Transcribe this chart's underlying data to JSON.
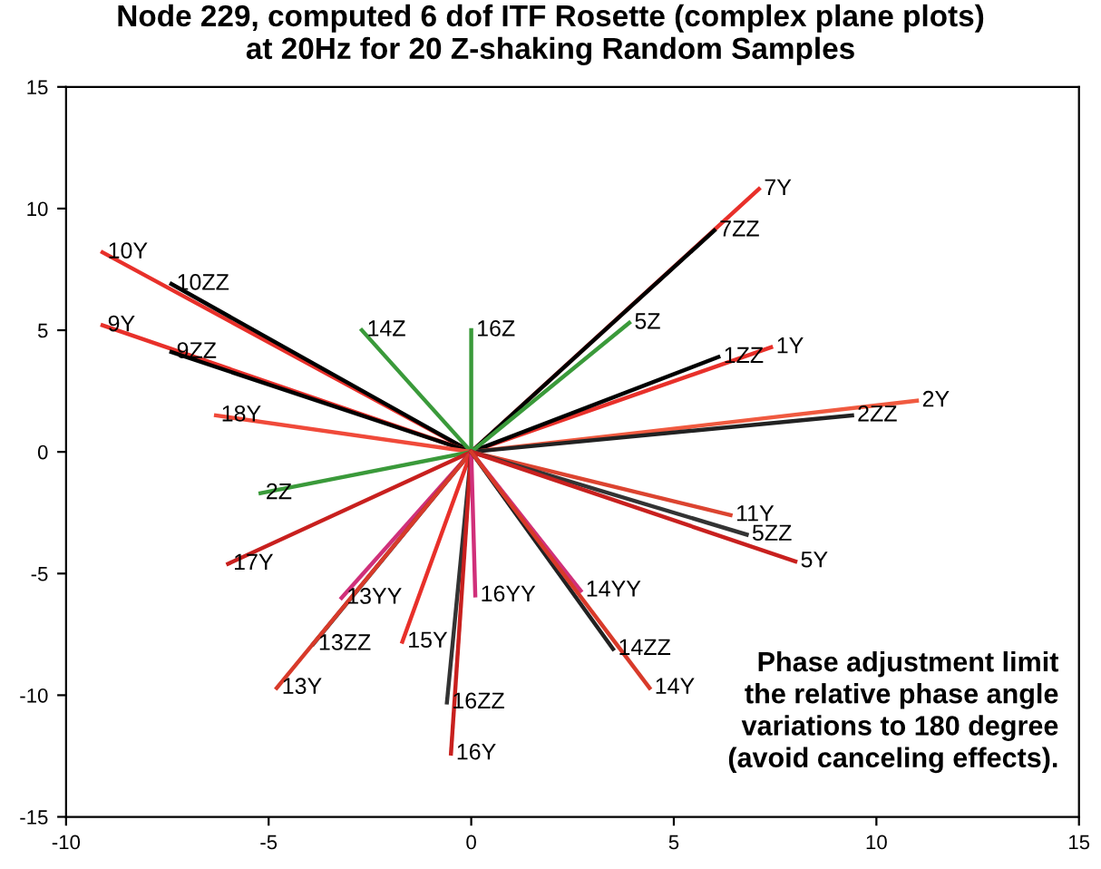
{
  "chart_data": {
    "type": "line",
    "title": "Node 229, computed 6 dof ITF Rosette (complex plane plots)\nat 20Hz for 20 Z-shaking Random Samples",
    "xlim": [
      -10,
      15
    ],
    "ylim": [
      -15,
      15
    ],
    "xticks": [
      -10,
      -5,
      0,
      5,
      10,
      15
    ],
    "yticks": [
      -15,
      -10,
      -5,
      0,
      5,
      10,
      15
    ],
    "grid": false,
    "legend": false,
    "marker": "none",
    "line_style": "solid",
    "annotations": [
      "Phase adjustment limit\nthe relative phase angle\nvariations to 180 degree\n(avoid canceling effects)."
    ],
    "series": [
      {
        "name": "7Y",
        "color": "#e8302a",
        "x": [
          0,
          7.1
        ],
        "values": [
          0,
          10.8
        ]
      },
      {
        "name": "7ZZ",
        "color": "#000000",
        "x": [
          0,
          6.0
        ],
        "values": [
          0,
          9.1
        ]
      },
      {
        "name": "1Y",
        "color": "#e8302a",
        "x": [
          0,
          7.4
        ],
        "values": [
          0,
          4.3
        ]
      },
      {
        "name": "1ZZ",
        "color": "#000000",
        "x": [
          0,
          6.1
        ],
        "values": [
          0,
          3.9
        ]
      },
      {
        "name": "2Y",
        "color": "#f05a40",
        "x": [
          0,
          11.0
        ],
        "values": [
          0,
          2.1
        ]
      },
      {
        "name": "2ZZ",
        "color": "#222222",
        "x": [
          0,
          9.4
        ],
        "values": [
          0,
          1.5
        ]
      },
      {
        "name": "10Y",
        "color": "#e8302a",
        "x": [
          0,
          -9.1
        ],
        "values": [
          0,
          8.2
        ]
      },
      {
        "name": "10ZZ",
        "color": "#000000",
        "x": [
          0,
          -7.4
        ],
        "values": [
          0,
          6.9
        ]
      },
      {
        "name": "9Y",
        "color": "#e8302a",
        "x": [
          0,
          -9.1
        ],
        "values": [
          0,
          5.2
        ]
      },
      {
        "name": "9ZZ",
        "color": "#000000",
        "x": [
          0,
          -7.4
        ],
        "values": [
          0,
          4.1
        ]
      },
      {
        "name": "14Z",
        "color": "#3a9a3a",
        "x": [
          0,
          -2.7
        ],
        "values": [
          0,
          5.0
        ]
      },
      {
        "name": "16Z",
        "color": "#3a9a3a",
        "x": [
          0,
          0.0
        ],
        "values": [
          0,
          5.0
        ]
      },
      {
        "name": "5Z",
        "color": "#3a9a3a",
        "x": [
          0,
          3.9
        ],
        "values": [
          0,
          5.3
        ]
      },
      {
        "name": "18Y",
        "color": "#f04a3a",
        "x": [
          0,
          -6.3
        ],
        "values": [
          0,
          1.5
        ]
      },
      {
        "name": "2Z",
        "color": "#3a9a3a",
        "x": [
          0,
          -5.2
        ],
        "values": [
          0,
          -1.7
        ]
      },
      {
        "name": "17Y",
        "color": "#c8201e",
        "x": [
          0,
          -6.0
        ],
        "values": [
          0,
          -4.6
        ]
      },
      {
        "name": "13YY",
        "color": "#d0307a",
        "x": [
          0,
          -3.2
        ],
        "values": [
          0,
          -6.0
        ]
      },
      {
        "name": "13ZZ",
        "color": "#333333",
        "x": [
          0,
          -3.9
        ],
        "values": [
          0,
          -7.9
        ]
      },
      {
        "name": "13Y",
        "color": "#d83a2a",
        "x": [
          0,
          -4.8
        ],
        "values": [
          0,
          -9.7
        ]
      },
      {
        "name": "15Y",
        "color": "#e8302a",
        "x": [
          0,
          -1.7
        ],
        "values": [
          0,
          -7.8
        ]
      },
      {
        "name": "16ZZ",
        "color": "#333333",
        "x": [
          0,
          -0.6
        ],
        "values": [
          0,
          -10.3
        ]
      },
      {
        "name": "16Y",
        "color": "#c8201e",
        "x": [
          0,
          -0.5
        ],
        "values": [
          0,
          -12.4
        ]
      },
      {
        "name": "16YY",
        "color": "#d0307a",
        "x": [
          0,
          0.1
        ],
        "values": [
          0,
          -5.9
        ]
      },
      {
        "name": "11Y",
        "color": "#dc4430",
        "x": [
          0,
          6.4
        ],
        "values": [
          0,
          -2.6
        ]
      },
      {
        "name": "5ZZ",
        "color": "#333333",
        "x": [
          0,
          6.8
        ],
        "values": [
          0,
          -3.4
        ]
      },
      {
        "name": "5Y",
        "color": "#c8201e",
        "x": [
          0,
          8.0
        ],
        "values": [
          0,
          -4.5
        ]
      },
      {
        "name": "14YY",
        "color": "#d0307a",
        "x": [
          0,
          2.7
        ],
        "values": [
          0,
          -5.7
        ]
      },
      {
        "name": "14ZZ",
        "color": "#222222",
        "x": [
          0,
          3.5
        ],
        "values": [
          0,
          -8.1
        ]
      },
      {
        "name": "14Y",
        "color": "#d83a2a",
        "x": [
          0,
          4.4
        ],
        "values": [
          0,
          -9.7
        ]
      }
    ]
  }
}
